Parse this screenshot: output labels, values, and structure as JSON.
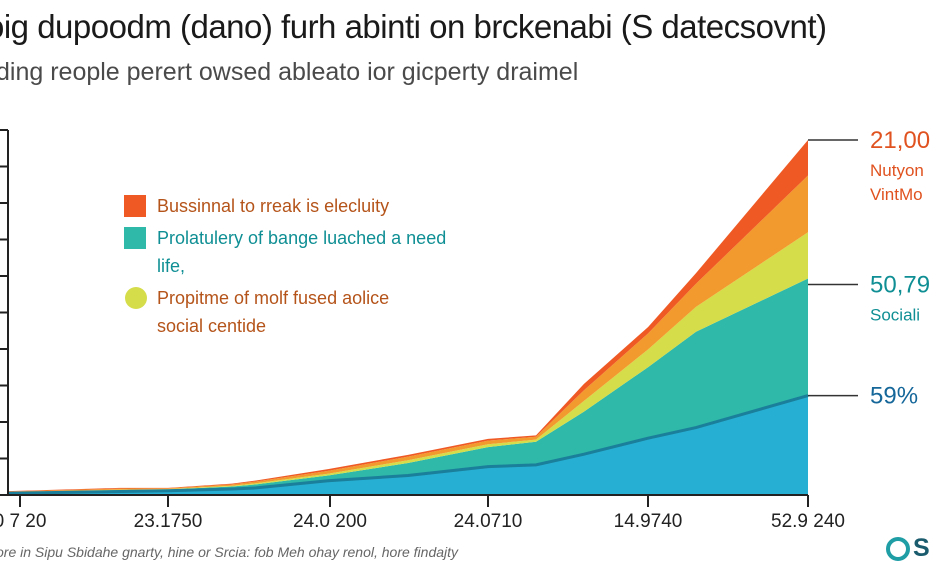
{
  "header": {
    "title": "oig dupoodm (dano) furh abinti on brckenabi (S datecsovnt)",
    "subtitle": "ding reople perert owsed ableato ior gicperty draimel"
  },
  "footer": {
    "note": "ore in Sipu Sbidahe gnarty, hine or Srcia: fob Meh ohay renol, hore findajty"
  },
  "brand": {
    "logo_text": "S"
  },
  "colors": {
    "red": "#ef5a24",
    "orange": "#f39a2e",
    "yellow": "#d5dd4b",
    "teal": "#2fb9a8",
    "blue": "#27aed3",
    "blue_line": "#1a7f9a",
    "axis": "#222222"
  },
  "chart_data": {
    "type": "area",
    "stacked": true,
    "title": "oig dupoodm (dano) furh abinti on brckenabi (S datecsovnt)",
    "subtitle": "ding reople perert owsed ableato ior gicperty draimel",
    "x_tick_labels": [
      "0 7 20",
      "23.1750",
      "24.0 200",
      "24.0710",
      "14.9740",
      "52.9 240"
    ],
    "x": [
      0,
      0.7,
      1,
      1.4,
      1.55,
      2,
      2.5,
      3,
      3.3,
      3.6,
      4,
      4.3,
      5
    ],
    "ylim": [
      0,
      100
    ],
    "series": [
      {
        "color": "blue",
        "values": [
          0.5,
          1.0,
          1.2,
          1.7,
          2.0,
          4.0,
          5.5,
          8.0,
          8.5,
          11.5,
          16.0,
          19.0,
          28.0
        ]
      },
      {
        "color": "teal",
        "values": [
          0.2,
          0.4,
          0.4,
          0.7,
          1.0,
          1.5,
          3.5,
          5.5,
          6.5,
          12.0,
          20.0,
          27.0,
          33.0
        ]
      },
      {
        "color": "yellow",
        "values": [
          0.1,
          0.1,
          0.1,
          0.2,
          0.3,
          0.5,
          0.8,
          0.8,
          0.6,
          3.0,
          5.0,
          7.0,
          13.0
        ]
      },
      {
        "color": "orange",
        "values": [
          0.2,
          0.3,
          0.2,
          0.4,
          0.5,
          0.8,
          1.0,
          1.0,
          0.8,
          3.0,
          4.5,
          6.5,
          16.0
        ]
      },
      {
        "color": "red",
        "values": [
          0.1,
          0.2,
          0.1,
          0.2,
          0.3,
          0.5,
          0.5,
          0.5,
          0.4,
          1.8,
          1.8,
          3.0,
          10.0
        ]
      }
    ],
    "legend": {
      "placement": "upper-left",
      "items": [
        {
          "color": "red",
          "shape": "square",
          "lines": [
            "Bussinnal to rreak is elecluity"
          ]
        },
        {
          "color": "teal",
          "shape": "square",
          "lines": [
            "Prolatulery of bange luached a need",
            "life,"
          ]
        },
        {
          "color": "yellow",
          "shape": "circle",
          "lines": [
            "Propitme of molf fused aolice",
            "social centide"
          ]
        }
      ]
    },
    "annotations": [
      {
        "value": "21,00",
        "sub": [
          "Nutyon",
          "VintMo"
        ],
        "color": "#e0521f",
        "sub_color": "#e0521f",
        "at": "top"
      },
      {
        "value": "50,79",
        "sub": [
          "Sociali"
        ],
        "color": "#0f8f94",
        "sub_color": "#0f8f94",
        "at": "blue+teal"
      },
      {
        "value": "59%",
        "sub": [],
        "color": "#15679a",
        "sub_color": "#15679a",
        "at": "blue"
      }
    ]
  }
}
